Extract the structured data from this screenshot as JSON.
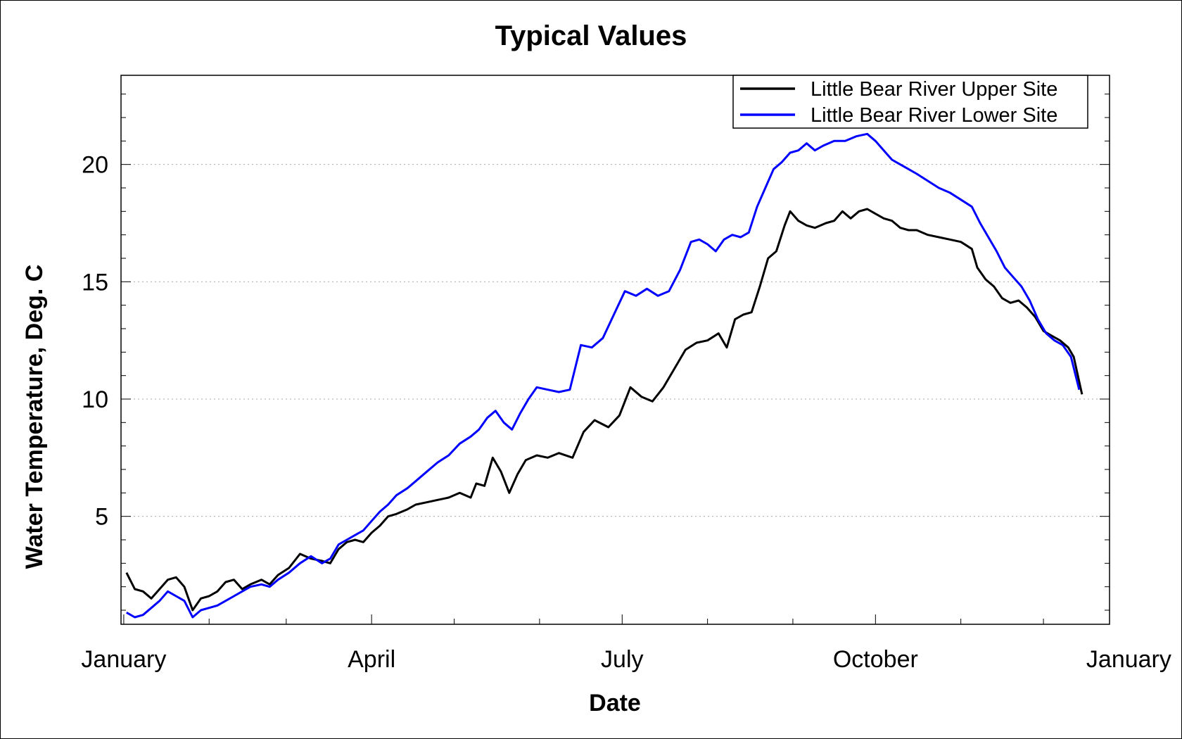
{
  "chart_data": {
    "type": "line",
    "title": "Typical Values",
    "xlabel": "Date",
    "ylabel": "Water Temperature, Deg. C",
    "x_unit": "day of year",
    "xlim": [
      -1,
      358
    ],
    "ylim": [
      0.4,
      23.8
    ],
    "x_ticks": [
      {
        "label": "January",
        "value": 0
      },
      {
        "label": "April",
        "value": 90
      },
      {
        "label": "July",
        "value": 181
      },
      {
        "label": "October",
        "value": 273
      },
      {
        "label": "January",
        "value": 365
      }
    ],
    "y_ticks": [
      5,
      10,
      15,
      20
    ],
    "grid": "horizontal dotted at 5, 10, 15, 20",
    "legend_position": "top-right",
    "series": [
      {
        "name": "Little Bear River Upper Site",
        "color": "#000000",
        "points": [
          [
            1,
            2.6
          ],
          [
            4,
            1.9
          ],
          [
            7,
            1.8
          ],
          [
            10,
            1.5
          ],
          [
            13,
            1.9
          ],
          [
            16,
            2.3
          ],
          [
            19,
            2.4
          ],
          [
            22,
            2.0
          ],
          [
            25,
            1.0
          ],
          [
            28,
            1.5
          ],
          [
            31,
            1.6
          ],
          [
            34,
            1.8
          ],
          [
            37,
            2.2
          ],
          [
            40,
            2.3
          ],
          [
            43,
            1.9
          ],
          [
            46,
            2.1
          ],
          [
            50,
            2.3
          ],
          [
            53,
            2.1
          ],
          [
            56,
            2.5
          ],
          [
            60,
            2.8
          ],
          [
            64,
            3.4
          ],
          [
            68,
            3.2
          ],
          [
            72,
            3.1
          ],
          [
            75,
            3.0
          ],
          [
            78,
            3.6
          ],
          [
            81,
            3.9
          ],
          [
            84,
            4.0
          ],
          [
            87,
            3.9
          ],
          [
            90,
            4.3
          ],
          [
            93,
            4.6
          ],
          [
            96,
            5.0
          ],
          [
            99,
            5.1
          ],
          [
            103,
            5.3
          ],
          [
            106,
            5.5
          ],
          [
            110,
            5.6
          ],
          [
            114,
            5.7
          ],
          [
            118,
            5.8
          ],
          [
            122,
            6.0
          ],
          [
            126,
            5.8
          ],
          [
            128,
            6.4
          ],
          [
            131,
            6.3
          ],
          [
            134,
            7.5
          ],
          [
            137,
            6.9
          ],
          [
            140,
            6.0
          ],
          [
            143,
            6.8
          ],
          [
            146,
            7.4
          ],
          [
            150,
            7.6
          ],
          [
            154,
            7.5
          ],
          [
            158,
            7.7
          ],
          [
            163,
            7.5
          ],
          [
            167,
            8.6
          ],
          [
            171,
            9.1
          ],
          [
            176,
            8.8
          ],
          [
            180,
            9.3
          ],
          [
            184,
            10.5
          ],
          [
            188,
            10.1
          ],
          [
            192,
            9.9
          ],
          [
            196,
            10.5
          ],
          [
            200,
            11.3
          ],
          [
            204,
            12.1
          ],
          [
            208,
            12.4
          ],
          [
            212,
            12.5
          ],
          [
            216,
            12.8
          ],
          [
            219,
            12.2
          ],
          [
            222,
            13.4
          ],
          [
            225,
            13.6
          ],
          [
            228,
            13.7
          ],
          [
            231,
            14.8
          ],
          [
            234,
            16.0
          ],
          [
            237,
            16.3
          ],
          [
            240,
            17.4
          ],
          [
            242,
            18.0
          ],
          [
            245,
            17.6
          ],
          [
            248,
            17.4
          ],
          [
            251,
            17.3
          ],
          [
            255,
            17.5
          ],
          [
            258,
            17.6
          ],
          [
            261,
            18.0
          ],
          [
            264,
            17.7
          ],
          [
            267,
            18.0
          ],
          [
            270,
            18.1
          ],
          [
            273,
            17.9
          ],
          [
            276,
            17.7
          ],
          [
            279,
            17.6
          ],
          [
            282,
            17.3
          ],
          [
            285,
            17.2
          ],
          [
            288,
            17.2
          ],
          [
            292,
            17.0
          ],
          [
            296,
            16.9
          ],
          [
            300,
            16.8
          ],
          [
            304,
            16.7
          ],
          [
            308,
            16.4
          ],
          [
            310,
            15.6
          ],
          [
            313,
            15.1
          ],
          [
            316,
            14.8
          ],
          [
            319,
            14.3
          ],
          [
            322,
            14.1
          ],
          [
            325,
            14.2
          ],
          [
            328,
            13.9
          ],
          [
            331,
            13.5
          ],
          [
            334,
            12.9
          ],
          [
            337,
            12.7
          ],
          [
            340,
            12.5
          ],
          [
            343,
            12.2
          ],
          [
            345,
            11.8
          ],
          [
            348,
            10.2
          ]
        ]
      },
      {
        "name": "Little Bear River Lower Site",
        "color": "#0000ff",
        "points": [
          [
            1,
            0.9
          ],
          [
            4,
            0.7
          ],
          [
            7,
            0.8
          ],
          [
            10,
            1.1
          ],
          [
            13,
            1.4
          ],
          [
            16,
            1.8
          ],
          [
            19,
            1.6
          ],
          [
            22,
            1.4
          ],
          [
            25,
            0.7
          ],
          [
            28,
            1.0
          ],
          [
            31,
            1.1
          ],
          [
            34,
            1.2
          ],
          [
            37,
            1.4
          ],
          [
            40,
            1.6
          ],
          [
            43,
            1.8
          ],
          [
            46,
            2.0
          ],
          [
            50,
            2.1
          ],
          [
            53,
            2.0
          ],
          [
            56,
            2.3
          ],
          [
            60,
            2.6
          ],
          [
            64,
            3.0
          ],
          [
            68,
            3.3
          ],
          [
            72,
            3.0
          ],
          [
            75,
            3.2
          ],
          [
            78,
            3.8
          ],
          [
            81,
            4.0
          ],
          [
            84,
            4.2
          ],
          [
            87,
            4.4
          ],
          [
            90,
            4.8
          ],
          [
            93,
            5.2
          ],
          [
            96,
            5.5
          ],
          [
            99,
            5.9
          ],
          [
            103,
            6.2
          ],
          [
            106,
            6.5
          ],
          [
            110,
            6.9
          ],
          [
            114,
            7.3
          ],
          [
            118,
            7.6
          ],
          [
            122,
            8.1
          ],
          [
            126,
            8.4
          ],
          [
            129,
            8.7
          ],
          [
            132,
            9.2
          ],
          [
            135,
            9.5
          ],
          [
            138,
            9.0
          ],
          [
            141,
            8.7
          ],
          [
            144,
            9.4
          ],
          [
            147,
            10.0
          ],
          [
            150,
            10.5
          ],
          [
            154,
            10.4
          ],
          [
            158,
            10.3
          ],
          [
            162,
            10.4
          ],
          [
            166,
            12.3
          ],
          [
            170,
            12.2
          ],
          [
            174,
            12.6
          ],
          [
            178,
            13.6
          ],
          [
            182,
            14.6
          ],
          [
            186,
            14.4
          ],
          [
            190,
            14.7
          ],
          [
            194,
            14.4
          ],
          [
            198,
            14.6
          ],
          [
            202,
            15.5
          ],
          [
            206,
            16.7
          ],
          [
            209,
            16.8
          ],
          [
            212,
            16.6
          ],
          [
            215,
            16.3
          ],
          [
            218,
            16.8
          ],
          [
            221,
            17.0
          ],
          [
            224,
            16.9
          ],
          [
            227,
            17.1
          ],
          [
            230,
            18.2
          ],
          [
            233,
            19.0
          ],
          [
            236,
            19.8
          ],
          [
            239,
            20.1
          ],
          [
            242,
            20.5
          ],
          [
            245,
            20.6
          ],
          [
            248,
            20.9
          ],
          [
            251,
            20.6
          ],
          [
            254,
            20.8
          ],
          [
            258,
            21.0
          ],
          [
            262,
            21.0
          ],
          [
            266,
            21.2
          ],
          [
            270,
            21.3
          ],
          [
            273,
            21.0
          ],
          [
            276,
            20.6
          ],
          [
            279,
            20.2
          ],
          [
            282,
            20.0
          ],
          [
            285,
            19.8
          ],
          [
            288,
            19.6
          ],
          [
            292,
            19.3
          ],
          [
            296,
            19.0
          ],
          [
            300,
            18.8
          ],
          [
            304,
            18.5
          ],
          [
            308,
            18.2
          ],
          [
            311,
            17.5
          ],
          [
            314,
            16.9
          ],
          [
            317,
            16.3
          ],
          [
            320,
            15.6
          ],
          [
            323,
            15.2
          ],
          [
            326,
            14.8
          ],
          [
            329,
            14.2
          ],
          [
            332,
            13.4
          ],
          [
            335,
            12.8
          ],
          [
            338,
            12.5
          ],
          [
            341,
            12.3
          ],
          [
            344,
            11.8
          ],
          [
            347,
            10.4
          ]
        ]
      }
    ]
  }
}
